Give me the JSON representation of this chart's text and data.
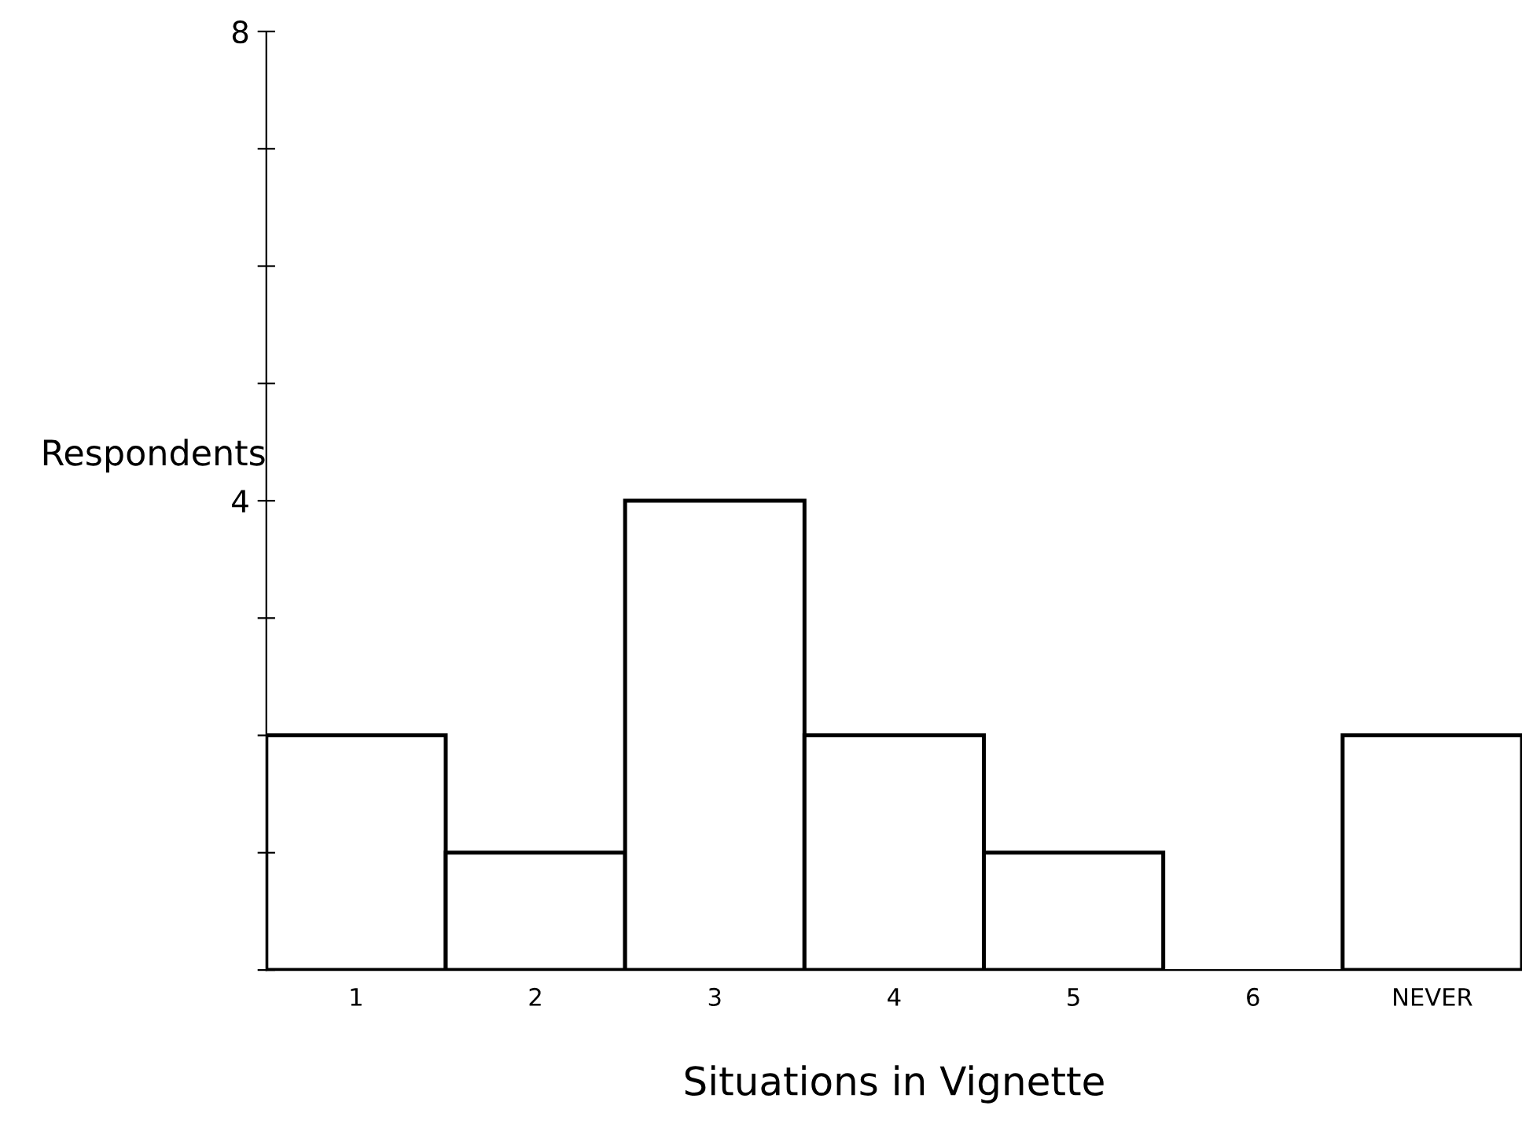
{
  "chart_data": {
    "type": "bar",
    "xlabel": "Situations in Vignette",
    "ylabel": "Respondents",
    "categories": [
      "1",
      "2",
      "3",
      "4",
      "5",
      "6",
      "NEVER"
    ],
    "values": [
      2,
      1,
      4,
      2,
      1,
      0,
      2
    ],
    "color": "#ffffff",
    "ylim": [
      0,
      8
    ],
    "yticks": [
      {
        "value": 0,
        "label": null
      },
      {
        "value": 1,
        "label": null
      },
      {
        "value": 2,
        "label": null
      },
      {
        "value": 3,
        "label": null
      },
      4,
      {
        "value": 5,
        "label": null
      },
      {
        "value": 6,
        "label": null
      },
      {
        "value": 7,
        "label": null
      },
      8
    ],
    "grid": false,
    "legend": false
  }
}
